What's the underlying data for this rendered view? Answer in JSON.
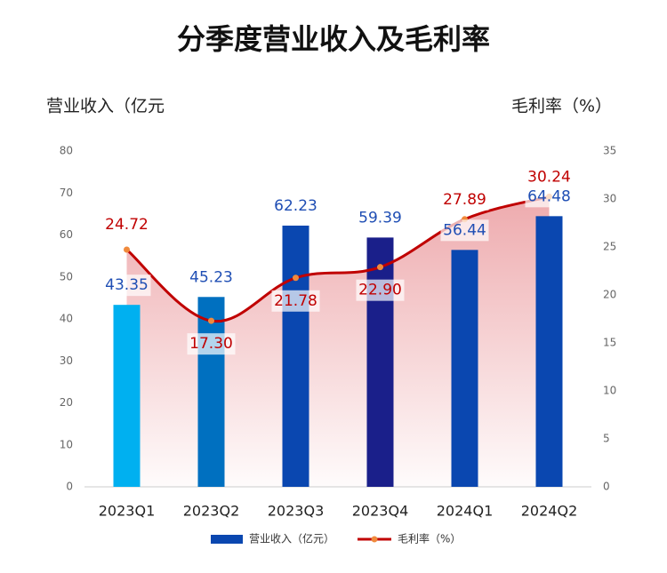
{
  "chart_data": {
    "type": "bar-line",
    "title": "分季度营业收入及毛利率",
    "ylabel": "营业收入（亿元",
    "y2label": "毛利率（%）",
    "categories": [
      "2023Q1",
      "2023Q2",
      "2023Q3",
      "2023Q4",
      "2024Q1",
      "2024Q2"
    ],
    "series": [
      {
        "name": "营业收入（亿元）",
        "kind": "bar",
        "color": "#0a47b0",
        "colors": [
          "#00b0f0",
          "#0070c0",
          "#0a47b0",
          "#1a1f8a",
          "#0a47b0",
          "#0a47b0"
        ],
        "label_color": "#1f4eb4",
        "values": [
          43.35,
          45.23,
          62.23,
          59.39,
          56.44,
          64.48
        ]
      },
      {
        "name": "毛利率（%）",
        "kind": "line",
        "axis": "y2",
        "color": "#c00000",
        "marker_color": "#f08a3c",
        "label_color": "#c00000",
        "values": [
          24.72,
          17.3,
          21.78,
          22.9,
          27.89,
          30.24
        ],
        "value_labels": [
          "24.72",
          "17.30",
          "21.78",
          "22.90",
          "27.89",
          "30.24"
        ]
      }
    ],
    "ylim": [
      0,
      80
    ],
    "yticks": [
      0,
      10,
      20,
      30,
      40,
      50,
      60,
      70,
      80
    ],
    "y2lim": [
      0,
      35
    ],
    "y2ticks": [
      0,
      5,
      10,
      15,
      20,
      25,
      30,
      35
    ],
    "legend": "bottom"
  }
}
